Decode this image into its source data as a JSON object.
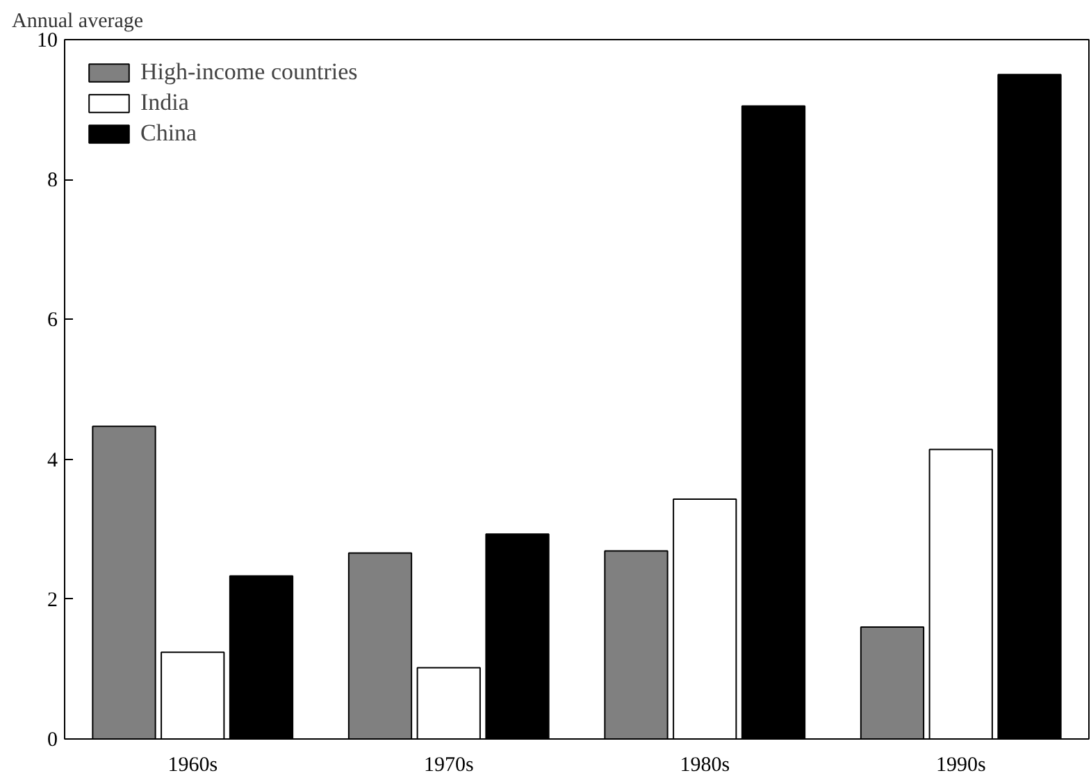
{
  "chart_data": {
    "type": "bar",
    "ylabel": "Annual average",
    "categories": [
      "1960s",
      "1970s",
      "1980s",
      "1990s"
    ],
    "series": [
      {
        "name": "High-income countries",
        "color": "#808080",
        "values": [
          4.47,
          2.66,
          2.69,
          1.6
        ]
      },
      {
        "name": "India",
        "color": "#ffffff",
        "values": [
          1.24,
          1.02,
          3.43,
          4.14
        ]
      },
      {
        "name": "China",
        "color": "#000000",
        "values": [
          2.33,
          2.93,
          9.05,
          9.5
        ]
      }
    ],
    "ylim": [
      0,
      10
    ],
    "yticks": [
      0,
      2,
      4,
      6,
      8,
      10
    ],
    "grid": false,
    "legend": "top left"
  }
}
